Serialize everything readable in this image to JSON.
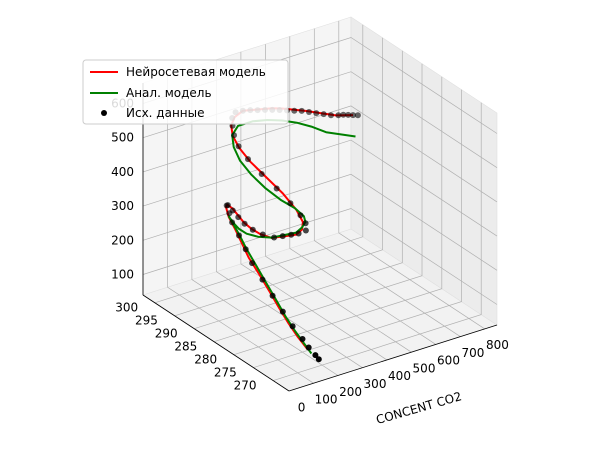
{
  "chart_data": {
    "type": "scatter3d",
    "title": "",
    "xlabel": "CONCENT CO2",
    "ylabel": "",
    "zlabel": "",
    "x_ticks": [
      "0",
      "100",
      "200",
      "300",
      "400",
      "500",
      "600",
      "700",
      "800"
    ],
    "y_ticks": [
      "270",
      "275",
      "280",
      "285",
      "290",
      "295",
      "300"
    ],
    "z_ticks": [
      "100",
      "200",
      "300",
      "400",
      "500",
      "600"
    ],
    "xlim": [
      0,
      850
    ],
    "ylim": [
      266,
      303
    ],
    "zlim": [
      40,
      660
    ],
    "legend": {
      "position": "upper-left",
      "entries": [
        {
          "label": "Нейросетевая модель",
          "color": "#ff0000",
          "kind": "line"
        },
        {
          "label": "Анал. модель",
          "color": "#008000",
          "kind": "line"
        },
        {
          "label": "Исх. данные",
          "color": "#000000",
          "kind": "marker"
        }
      ]
    },
    "series": [
      {
        "name": "Нейросетевая модель",
        "color": "#ff0000",
        "points": [
          [
            810,
            300,
            405
          ],
          [
            740,
            300,
            420
          ],
          [
            680,
            300,
            440
          ],
          [
            620,
            300,
            460
          ],
          [
            570,
            300,
            475
          ],
          [
            520,
            300,
            490
          ],
          [
            480,
            300,
            500
          ],
          [
            420,
            300,
            510
          ],
          [
            360,
            300,
            520
          ],
          [
            310,
            299,
            520
          ],
          [
            280,
            298,
            510
          ],
          [
            270,
            297,
            490
          ],
          [
            280,
            296,
            460
          ],
          [
            310,
            295,
            420
          ],
          [
            360,
            294,
            370
          ],
          [
            410,
            293,
            320
          ],
          [
            450,
            292,
            270
          ],
          [
            460,
            291,
            240
          ],
          [
            440,
            290,
            230
          ],
          [
            400,
            289,
            232
          ],
          [
            350,
            289,
            238
          ],
          [
            300,
            289,
            245
          ],
          [
            270,
            290,
            255
          ],
          [
            250,
            291,
            268
          ],
          [
            235,
            292,
            282
          ],
          [
            225,
            293,
            300
          ],
          [
            220,
            294,
            312
          ],
          [
            215,
            295,
            316
          ],
          [
            210,
            295,
            310
          ],
          [
            205,
            294,
            290
          ],
          [
            200,
            292,
            270
          ],
          [
            195,
            290,
            245
          ],
          [
            190,
            288,
            220
          ],
          [
            185,
            285,
            195
          ],
          [
            178,
            282,
            170
          ],
          [
            170,
            279,
            145
          ],
          [
            160,
            276,
            125
          ],
          [
            150,
            273,
            110
          ],
          [
            140,
            270,
            100
          ]
        ]
      },
      {
        "name": "Анал. модель",
        "color": "#008000",
        "points": [
          [
            820,
            300,
            340
          ],
          [
            760,
            300,
            360
          ],
          [
            700,
            300,
            380
          ],
          [
            640,
            300,
            410
          ],
          [
            580,
            300,
            435
          ],
          [
            520,
            300,
            455
          ],
          [
            460,
            300,
            470
          ],
          [
            400,
            300,
            480
          ],
          [
            340,
            300,
            480
          ],
          [
            300,
            299,
            470
          ],
          [
            290,
            298,
            445
          ],
          [
            300,
            297,
            410
          ],
          [
            330,
            296,
            370
          ],
          [
            370,
            295,
            330
          ],
          [
            420,
            294,
            290
          ],
          [
            460,
            293,
            265
          ],
          [
            480,
            292,
            245
          ],
          [
            470,
            291,
            238
          ],
          [
            440,
            290,
            236
          ],
          [
            400,
            289,
            238
          ],
          [
            350,
            289,
            242
          ],
          [
            300,
            289,
            246
          ],
          [
            260,
            290,
            250
          ],
          [
            230,
            291,
            258
          ],
          [
            215,
            292,
            268
          ],
          [
            210,
            293,
            278
          ],
          [
            208,
            294,
            288
          ],
          [
            206,
            294,
            292
          ],
          [
            204,
            293,
            282
          ],
          [
            200,
            291,
            262
          ],
          [
            196,
            289,
            238
          ],
          [
            190,
            286,
            210
          ],
          [
            183,
            283,
            183
          ],
          [
            175,
            280,
            158
          ],
          [
            165,
            277,
            135
          ],
          [
            155,
            274,
            118
          ],
          [
            145,
            271,
            105
          ],
          [
            140,
            269,
            95
          ]
        ]
      },
      {
        "name": "Исх. данные",
        "color": "#000000",
        "points": [
          [
            830,
            300,
            400
          ],
          [
            810,
            300,
            405
          ],
          [
            790,
            300,
            410
          ],
          [
            770,
            300,
            415
          ],
          [
            750,
            300,
            418
          ],
          [
            720,
            300,
            425
          ],
          [
            690,
            300,
            435
          ],
          [
            660,
            300,
            445
          ],
          [
            630,
            300,
            455
          ],
          [
            600,
            300,
            465
          ],
          [
            570,
            300,
            472
          ],
          [
            540,
            300,
            480
          ],
          [
            510,
            300,
            488
          ],
          [
            480,
            300,
            495
          ],
          [
            450,
            300,
            502
          ],
          [
            420,
            300,
            508
          ],
          [
            390,
            300,
            515
          ],
          [
            360,
            300,
            520
          ],
          [
            330,
            300,
            522
          ],
          [
            300,
            299,
            520
          ],
          [
            285,
            298,
            508
          ],
          [
            275,
            297,
            490
          ],
          [
            278,
            296,
            465
          ],
          [
            300,
            295,
            430
          ],
          [
            340,
            294,
            385
          ],
          [
            385,
            293,
            340
          ],
          [
            425,
            292,
            295
          ],
          [
            450,
            291,
            262
          ],
          [
            455,
            290,
            245
          ],
          [
            440,
            289,
            235
          ],
          [
            410,
            289,
            233
          ],
          [
            380,
            289,
            236
          ],
          [
            345,
            289,
            240
          ],
          [
            310,
            289,
            244
          ],
          [
            280,
            290,
            252
          ],
          [
            255,
            291,
            264
          ],
          [
            238,
            292,
            278
          ],
          [
            228,
            293,
            292
          ],
          [
            222,
            294,
            305
          ],
          [
            218,
            295,
            314
          ],
          [
            213,
            295,
            314
          ],
          [
            208,
            294,
            300
          ],
          [
            203,
            293,
            282
          ],
          [
            199,
            291,
            260
          ],
          [
            194,
            289,
            236
          ],
          [
            188,
            287,
            212
          ],
          [
            182,
            284,
            188
          ],
          [
            175,
            281,
            165
          ],
          [
            168,
            278,
            143
          ],
          [
            160,
            275,
            125
          ],
          [
            152,
            272,
            112
          ],
          [
            145,
            270,
            104
          ],
          [
            140,
            268,
            98
          ],
          [
            138,
            267,
            94
          ]
        ]
      }
    ]
  }
}
